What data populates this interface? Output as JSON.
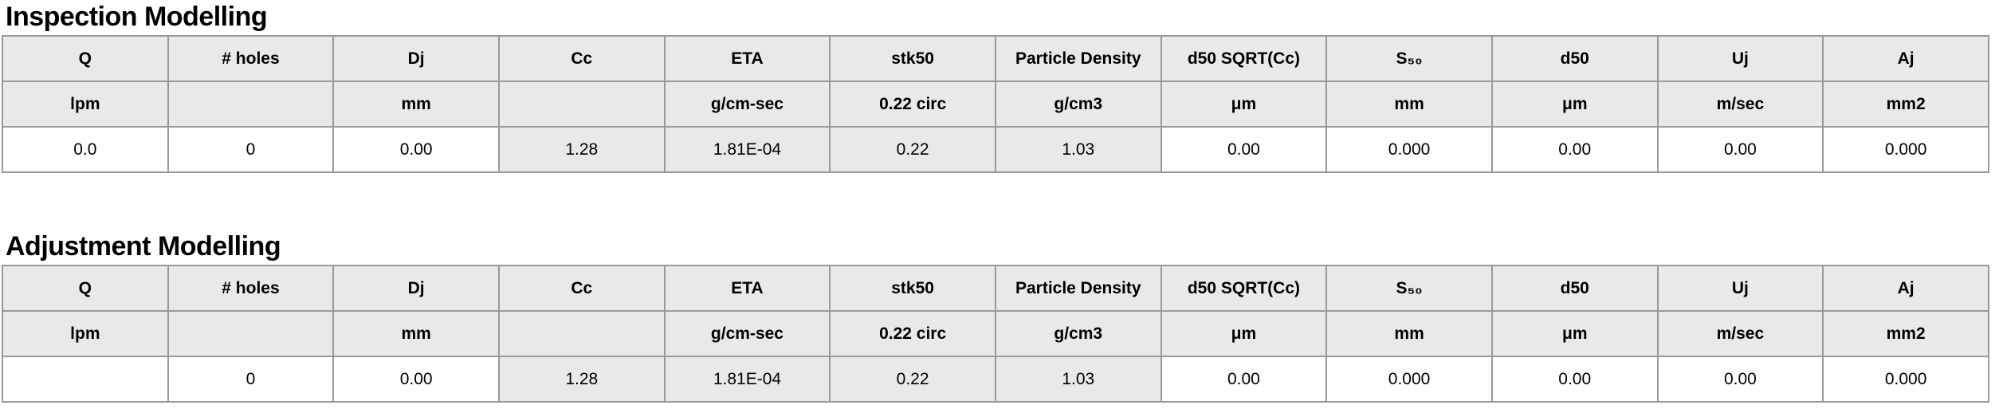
{
  "colors": {
    "shaded_cell": "#e9e9e9",
    "border": "#999999",
    "text": "#000000",
    "background": "#ffffff"
  },
  "columns": [
    {
      "key": "q",
      "label": "Q",
      "unit": "lpm"
    },
    {
      "key": "num-holes",
      "label": "# holes",
      "unit": ""
    },
    {
      "key": "dj",
      "label": "Dj",
      "unit": "mm"
    },
    {
      "key": "cc",
      "label": "Cc",
      "unit": ""
    },
    {
      "key": "eta",
      "label": "ETA",
      "unit": "g/cm-sec"
    },
    {
      "key": "stk50",
      "label": "stk50",
      "unit": "0.22 circ"
    },
    {
      "key": "particle-density",
      "label": "Particle Density",
      "unit": "g/cm3"
    },
    {
      "key": "d50-sqrt-cc",
      "label": "d50 SQRT(Cc)",
      "unit": "μm"
    },
    {
      "key": "s50",
      "label": "S₅₀",
      "unit": "mm"
    },
    {
      "key": "d50",
      "label": "d50",
      "unit": "μm"
    },
    {
      "key": "uj",
      "label": "Uj",
      "unit": "m/sec"
    },
    {
      "key": "aj",
      "label": "Aj",
      "unit": "mm2"
    }
  ],
  "tables": [
    {
      "title": "Inspection Modelling",
      "row": [
        "0.0",
        "0",
        "0.00",
        "1.28",
        "1.81E-04",
        "0.22",
        "1.03",
        "0.00",
        "0.000",
        "0.00",
        "0.00",
        "0.000"
      ],
      "computed": [
        false,
        false,
        false,
        true,
        true,
        true,
        true,
        false,
        false,
        false,
        false,
        false
      ]
    },
    {
      "title": "Adjustment Modelling",
      "row": [
        "",
        "0",
        "0.00",
        "1.28",
        "1.81E-04",
        "0.22",
        "1.03",
        "0.00",
        "0.000",
        "0.00",
        "0.00",
        "0.000"
      ],
      "computed": [
        false,
        false,
        false,
        true,
        true,
        true,
        true,
        false,
        false,
        false,
        false,
        false
      ]
    }
  ]
}
